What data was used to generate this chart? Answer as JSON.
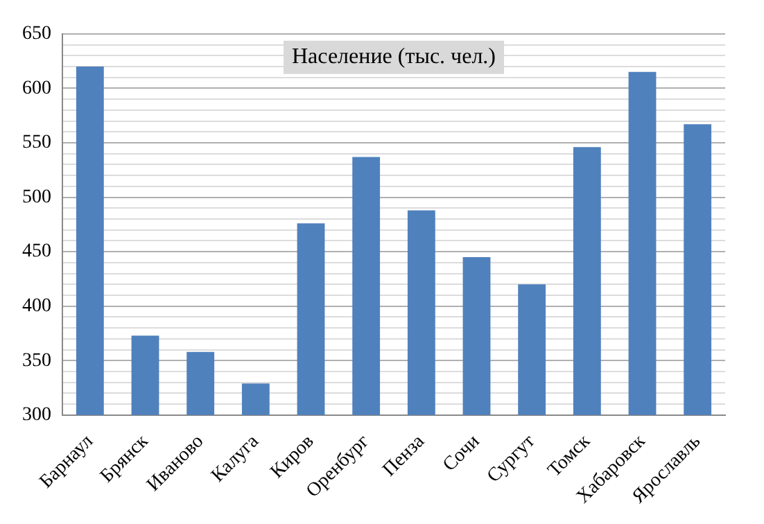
{
  "chart_data": {
    "type": "bar",
    "title": "Население (тыс. чел.)",
    "categories": [
      "Барнаул",
      "Брянск",
      "Иваново",
      "Калуга",
      "Киров",
      "Оренбург",
      "Пенза",
      "Сочи",
      "Сургут",
      "Томск",
      "Хабаровск",
      "Ярославль"
    ],
    "values": [
      620,
      373,
      358,
      329,
      476,
      537,
      488,
      445,
      420,
      546,
      615,
      567
    ],
    "color": "#4f81bd",
    "ylim": [
      300,
      650
    ],
    "yticks": [
      300,
      {
        "value": 310,
        "label": null
      },
      {
        "value": 320,
        "label": null
      },
      {
        "value": 330,
        "label": null
      },
      {
        "value": 340,
        "label": null
      },
      350,
      {
        "value": 360,
        "label": null
      },
      {
        "value": 370,
        "label": null
      },
      {
        "value": 380,
        "label": null
      },
      {
        "value": 390,
        "label": null
      },
      400,
      {
        "value": 410,
        "label": null
      },
      {
        "value": 420,
        "label": null
      },
      {
        "value": 430,
        "label": null
      },
      {
        "value": 440,
        "label": null
      },
      450,
      {
        "value": 460,
        "label": null
      },
      {
        "value": 470,
        "label": null
      },
      {
        "value": 480,
        "label": null
      },
      {
        "value": 490,
        "label": null
      },
      500,
      {
        "value": 510,
        "label": null
      },
      {
        "value": 520,
        "label": null
      },
      {
        "value": 530,
        "label": null
      },
      {
        "value": 540,
        "label": null
      },
      550,
      {
        "value": 560,
        "label": null
      },
      {
        "value": 570,
        "label": null
      },
      {
        "value": 580,
        "label": null
      },
      {
        "value": 590,
        "label": null
      },
      600,
      {
        "value": 610,
        "label": null
      },
      {
        "value": 620,
        "label": null
      },
      {
        "value": 630,
        "label": null
      },
      {
        "value": 640,
        "label": null
      },
      650
    ],
    "grid": "y",
    "legend": false
  }
}
